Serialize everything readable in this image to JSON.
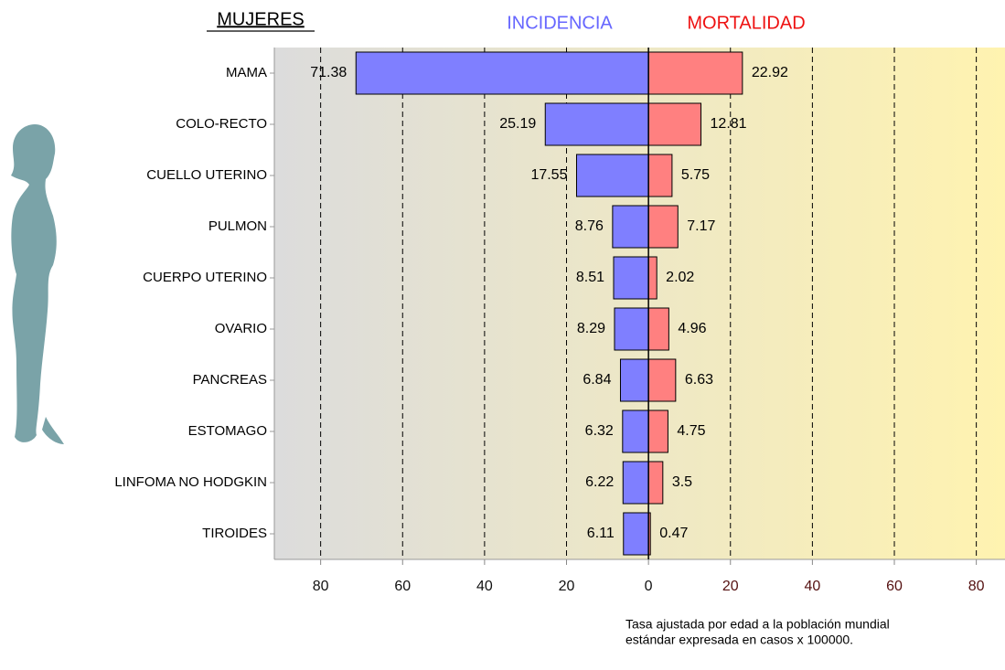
{
  "chart_data": {
    "type": "butterfly-bar",
    "title": "MUJERES",
    "categories": [
      "MAMA",
      "COLO-RECTO",
      "CUELLO UTERINO",
      "PULMON",
      "CUERPO UTERINO",
      "OVARIO",
      "PANCREAS",
      "ESTOMAGO",
      "LINFOMA NO HODGKIN",
      "TIROIDES"
    ],
    "series": [
      {
        "name": "INCIDENCIA",
        "color": "#7f7fff",
        "values": [
          71.38,
          25.19,
          17.55,
          8.76,
          8.51,
          8.29,
          6.84,
          6.32,
          6.22,
          6.11
        ]
      },
      {
        "name": "MORTALIDAD",
        "color": "#ff8080",
        "values": [
          22.92,
          12.81,
          5.75,
          7.17,
          2.02,
          4.96,
          6.63,
          4.75,
          3.5,
          0.47
        ]
      }
    ],
    "xlim": [
      -91.3,
      87
    ],
    "xticks": [
      {
        "value": -80,
        "label": "80"
      },
      {
        "value": -60,
        "label": "60"
      },
      {
        "value": -40,
        "label": "40"
      },
      {
        "value": -20,
        "label": "20"
      },
      0,
      20,
      40,
      60,
      80
    ],
    "grid": true,
    "note": [
      "Tasa ajustada por edad a la población mundial",
      "estándar expresada en casos x 100000."
    ]
  }
}
